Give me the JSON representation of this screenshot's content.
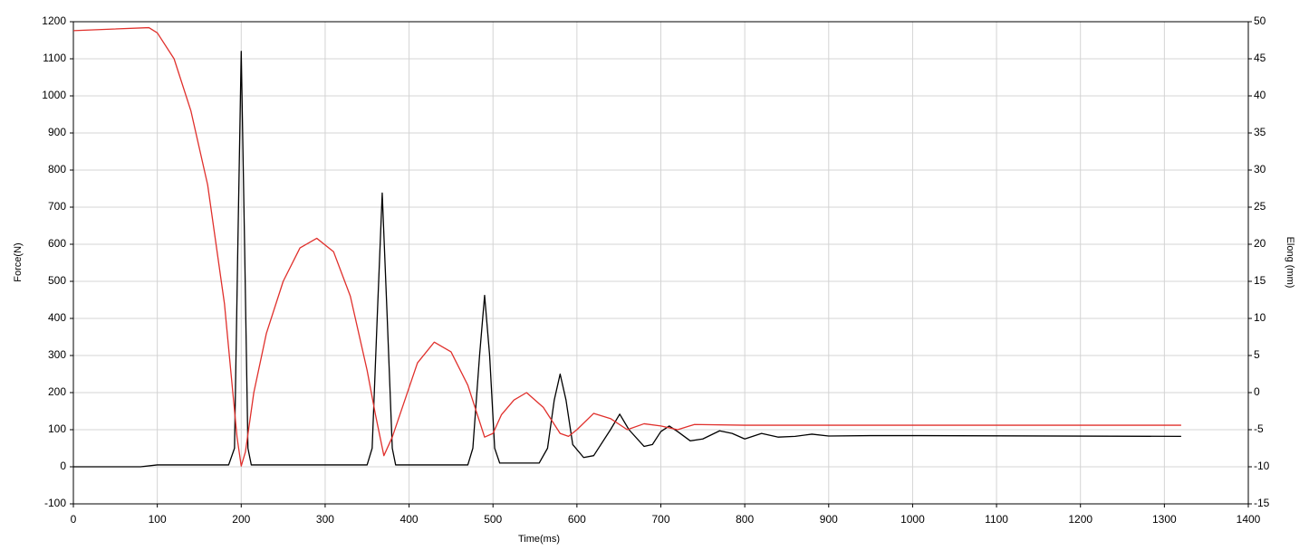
{
  "chart_data": {
    "type": "line",
    "xlabel": "Time(ms)",
    "ylabel": "Force(N)",
    "y2label": "Elong (mm)",
    "xlim": [
      0,
      1400
    ],
    "xticks": [
      0,
      100,
      200,
      300,
      400,
      500,
      600,
      700,
      800,
      900,
      1000,
      1100,
      1200,
      1300,
      1400
    ],
    "ylim": [
      -100,
      1200
    ],
    "yticks": [
      -100,
      0,
      100,
      200,
      300,
      400,
      500,
      600,
      700,
      800,
      900,
      1000,
      1100,
      1200
    ],
    "y2lim": [
      -15,
      50
    ],
    "y2ticks": [
      -15,
      -10,
      -5,
      0,
      5,
      10,
      15,
      20,
      25,
      30,
      35,
      40,
      45,
      50
    ],
    "grid": true,
    "series": [
      {
        "color": "#000000",
        "x": [
          0,
          80,
          100,
          185,
          192,
          196,
          200,
          204,
          208,
          212,
          350,
          356,
          362,
          368,
          374,
          380,
          384,
          470,
          476,
          484,
          490,
          496,
          502,
          508,
          555,
          565,
          573,
          580,
          587,
          595,
          608,
          620,
          640,
          651,
          662,
          680,
          690,
          700,
          710,
          720,
          735,
          750,
          770,
          785,
          800,
          820,
          840,
          860,
          880,
          900,
          950,
          1000,
          1320
        ],
        "values": [
          0,
          0,
          5,
          5,
          50,
          600,
          1120,
          600,
          50,
          5,
          5,
          50,
          400,
          738,
          400,
          50,
          5,
          5,
          50,
          300,
          462,
          300,
          50,
          10,
          10,
          50,
          180,
          250,
          180,
          60,
          25,
          30,
          100,
          142,
          100,
          55,
          60,
          95,
          110,
          95,
          70,
          75,
          97,
          90,
          75,
          90,
          80,
          82,
          88,
          83,
          84,
          84,
          82
        ]
      },
      {
        "color": "#e0302c",
        "axis": "y2",
        "x": [
          0,
          90,
          100,
          120,
          140,
          160,
          180,
          190,
          195,
          200,
          205,
          215,
          230,
          250,
          270,
          290,
          310,
          330,
          350,
          360,
          370,
          380,
          395,
          410,
          430,
          450,
          470,
          490,
          500,
          510,
          525,
          540,
          560,
          580,
          590,
          600,
          620,
          640,
          660,
          680,
          700,
          720,
          740,
          800,
          1320
        ],
        "values": [
          48.8,
          49.2,
          48.5,
          45,
          38,
          28,
          12,
          0,
          -6,
          -9.9,
          -8,
          0,
          8,
          15,
          19.5,
          20.8,
          19,
          13,
          3,
          -3,
          -8.5,
          -6,
          -1,
          4,
          6.8,
          5.5,
          1,
          -6,
          -5.5,
          -3,
          -1,
          0,
          -2,
          -5.5,
          -5.9,
          -5,
          -2.8,
          -3.5,
          -5,
          -4.2,
          -4.5,
          -5,
          -4.3,
          -4.4,
          -4.4
        ]
      }
    ]
  }
}
